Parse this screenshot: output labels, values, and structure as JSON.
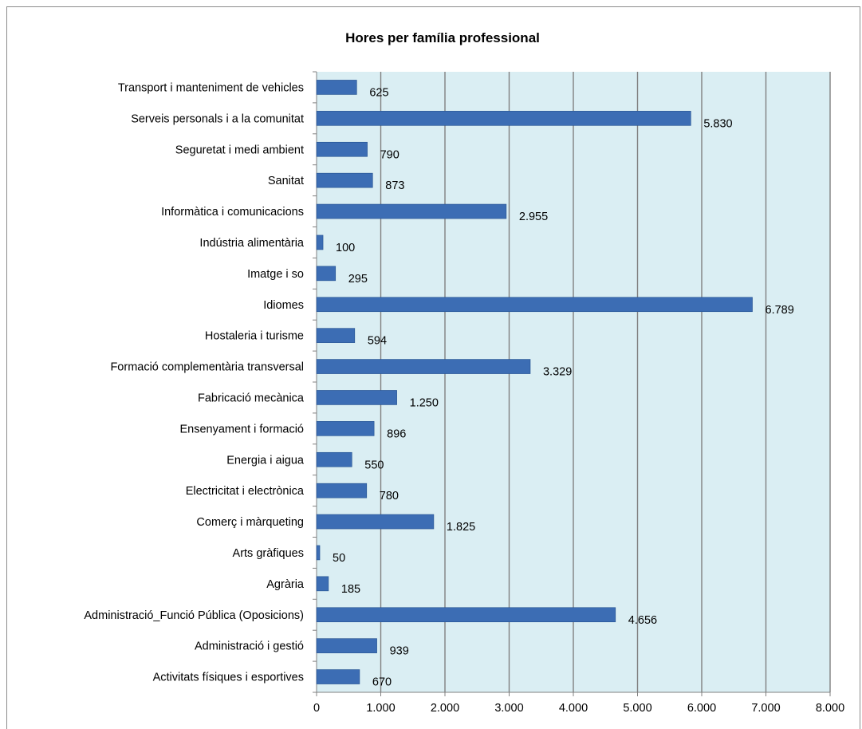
{
  "chart_data": {
    "type": "bar",
    "orientation": "horizontal",
    "title": "Hores per família professional",
    "xlabel": "",
    "ylabel": "",
    "xlim": [
      0,
      8000
    ],
    "x_ticks": [
      "0",
      "1.000",
      "2.000",
      "3.000",
      "4.000",
      "5.000",
      "6.000",
      "7.000",
      "8.000"
    ],
    "grid": true,
    "legend": "none",
    "colors": {
      "bar": "#3c6db4",
      "bar_edge": "#24518f",
      "plot_background": "#daeef3",
      "gridline": "#808080"
    },
    "categories": [
      "Transport i manteniment de vehicles",
      "Serveis personals i a la comunitat",
      "Seguretat i medi ambient",
      "Sanitat",
      "Informàtica i comunicacions",
      "Indústria alimentària",
      "Imatge i so",
      "Idiomes",
      "Hostaleria i turisme",
      "Formació complementària transversal",
      "Fabricació mecànica",
      "Ensenyament i formació",
      "Energia i aigua",
      "Electricitat i electrònica",
      "Comerç i màrqueting",
      "Arts gràfiques",
      "Agrària",
      "Administració_Funció Pública (Oposicions)",
      "Administració i gestió",
      "Activitats físiques i esportives"
    ],
    "values": [
      625,
      5830,
      790,
      873,
      2955,
      100,
      295,
      6789,
      594,
      3329,
      1250,
      896,
      550,
      780,
      1825,
      50,
      185,
      4656,
      939,
      670
    ],
    "data_labels": [
      "625",
      "5.830",
      "790",
      "873",
      "2.955",
      "100",
      "295",
      "6.789",
      "594",
      "3.329",
      "1.250",
      "896",
      "550",
      "780",
      "1.825",
      "50",
      "185",
      "4.656",
      "939",
      "670"
    ]
  }
}
